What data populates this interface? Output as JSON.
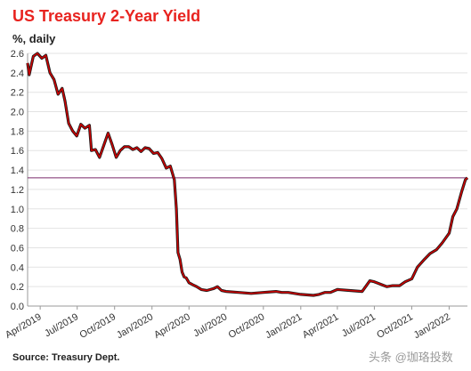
{
  "chart_data": {
    "type": "line",
    "title": "US Treasury 2-Year Yield",
    "subtitle": "%, daily",
    "source": "Source: Treasury Dept.",
    "watermark": "头条 @珈珞投数",
    "ylim": [
      0.0,
      2.6
    ],
    "y_ticks": [
      "0.0",
      "0.2",
      "0.4",
      "0.6",
      "0.8",
      "1.0",
      "1.2",
      "1.4",
      "1.6",
      "1.8",
      "2.0",
      "2.2",
      "2.4",
      "2.6"
    ],
    "x_tick_labels": [
      "Apr/2019",
      "Jul/2019",
      "Oct/2019",
      "Jan/2020",
      "Apr/2020",
      "Jul/2020",
      "Oct/2020",
      "Jan/2021",
      "Apr/2021",
      "Jul/2021",
      "Oct/2021",
      "Jan/2022"
    ],
    "grid": true,
    "reference_line": {
      "value": 1.32
    },
    "series": [
      {
        "color": "#cc0000",
        "x": [
          "2019-03-01",
          "2019-03-05",
          "2019-03-15",
          "2019-03-25",
          "2019-04-05",
          "2019-04-15",
          "2019-04-25",
          "2019-05-05",
          "2019-05-15",
          "2019-05-25",
          "2019-06-01",
          "2019-06-10",
          "2019-06-20",
          "2019-06-30",
          "2019-07-10",
          "2019-07-20",
          "2019-07-31",
          "2019-08-05",
          "2019-08-15",
          "2019-08-25",
          "2019-09-05",
          "2019-09-15",
          "2019-09-25",
          "2019-10-05",
          "2019-10-15",
          "2019-10-25",
          "2019-11-05",
          "2019-11-15",
          "2019-11-25",
          "2019-12-05",
          "2019-12-15",
          "2019-12-25",
          "2020-01-05",
          "2020-01-15",
          "2020-01-25",
          "2020-02-05",
          "2020-02-15",
          "2020-02-25",
          "2020-03-01",
          "2020-03-05",
          "2020-03-10",
          "2020-03-15",
          "2020-03-20",
          "2020-03-25",
          "2020-04-01",
          "2020-04-10",
          "2020-04-20",
          "2020-05-01",
          "2020-05-15",
          "2020-06-01",
          "2020-06-10",
          "2020-06-20",
          "2020-07-01",
          "2020-08-01",
          "2020-09-01",
          "2020-10-01",
          "2020-11-01",
          "2020-11-15",
          "2020-12-01",
          "2021-01-01",
          "2021-02-01",
          "2021-02-15",
          "2021-03-01",
          "2021-03-15",
          "2021-04-01",
          "2021-05-01",
          "2021-06-01",
          "2021-06-20",
          "2021-07-01",
          "2021-08-01",
          "2021-08-15",
          "2021-09-01",
          "2021-09-15",
          "2021-10-01",
          "2021-10-15",
          "2021-11-01",
          "2021-11-15",
          "2021-12-01",
          "2021-12-15",
          "2022-01-01",
          "2022-01-10",
          "2022-01-20",
          "2022-02-01",
          "2022-02-10",
          "2022-02-15"
        ],
        "y": [
          2.5,
          2.38,
          2.57,
          2.6,
          2.55,
          2.58,
          2.4,
          2.33,
          2.18,
          2.24,
          2.11,
          1.88,
          1.8,
          1.75,
          1.87,
          1.83,
          1.86,
          1.6,
          1.61,
          1.53,
          1.66,
          1.78,
          1.66,
          1.53,
          1.6,
          1.64,
          1.64,
          1.61,
          1.63,
          1.59,
          1.63,
          1.62,
          1.57,
          1.58,
          1.52,
          1.42,
          1.44,
          1.3,
          1.0,
          0.55,
          0.48,
          0.35,
          0.3,
          0.29,
          0.24,
          0.22,
          0.2,
          0.17,
          0.16,
          0.18,
          0.2,
          0.16,
          0.15,
          0.14,
          0.13,
          0.14,
          0.15,
          0.14,
          0.14,
          0.12,
          0.11,
          0.12,
          0.14,
          0.14,
          0.17,
          0.16,
          0.15,
          0.26,
          0.25,
          0.2,
          0.21,
          0.21,
          0.25,
          0.28,
          0.4,
          0.48,
          0.54,
          0.58,
          0.65,
          0.75,
          0.92,
          1.0,
          1.18,
          1.3,
          1.32
        ]
      }
    ]
  }
}
